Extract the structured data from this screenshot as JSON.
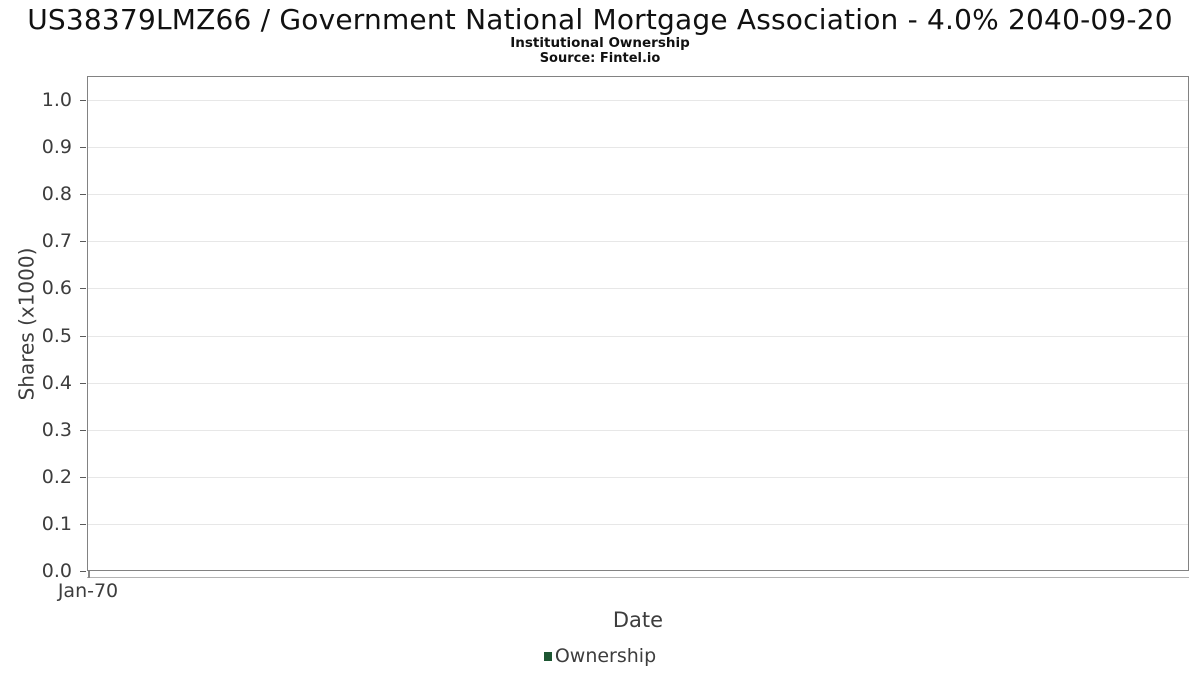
{
  "header": {
    "title": "US38379LMZ66 / Government National Mortgage Association - 4.0% 2040-09-20",
    "subtitle": "Institutional Ownership",
    "source": "Source: Fintel.io"
  },
  "chart_data": {
    "type": "line",
    "title": "US38379LMZ66 / Government National Mortgage Association - 4.0% 2040-09-20",
    "subtitle": "Institutional Ownership",
    "source": "Source: Fintel.io",
    "xlabel": "Date",
    "ylabel": "Shares (x1000)",
    "x_tick_labels": [
      "Jan-70"
    ],
    "y_tick_labels": [
      "0.0",
      "0.1",
      "0.2",
      "0.3",
      "0.4",
      "0.5",
      "0.6",
      "0.7",
      "0.8",
      "0.9",
      "1.0"
    ],
    "ylim": [
      0,
      1.05
    ],
    "grid": true,
    "legend": {
      "position": "bottom-center",
      "entries": [
        {
          "label": "Ownership",
          "color": "#1d5632"
        }
      ]
    },
    "series": [
      {
        "name": "Ownership",
        "x": [],
        "y": []
      }
    ]
  },
  "colors": {
    "background": "#ffffff",
    "plot_border": "#828282",
    "gridline": "#e7e7e7",
    "tick_mark": "#5a5a5a",
    "axis_text": "#3d3d3d",
    "title_text": "#111111",
    "legend_marker": "#1d5632"
  }
}
